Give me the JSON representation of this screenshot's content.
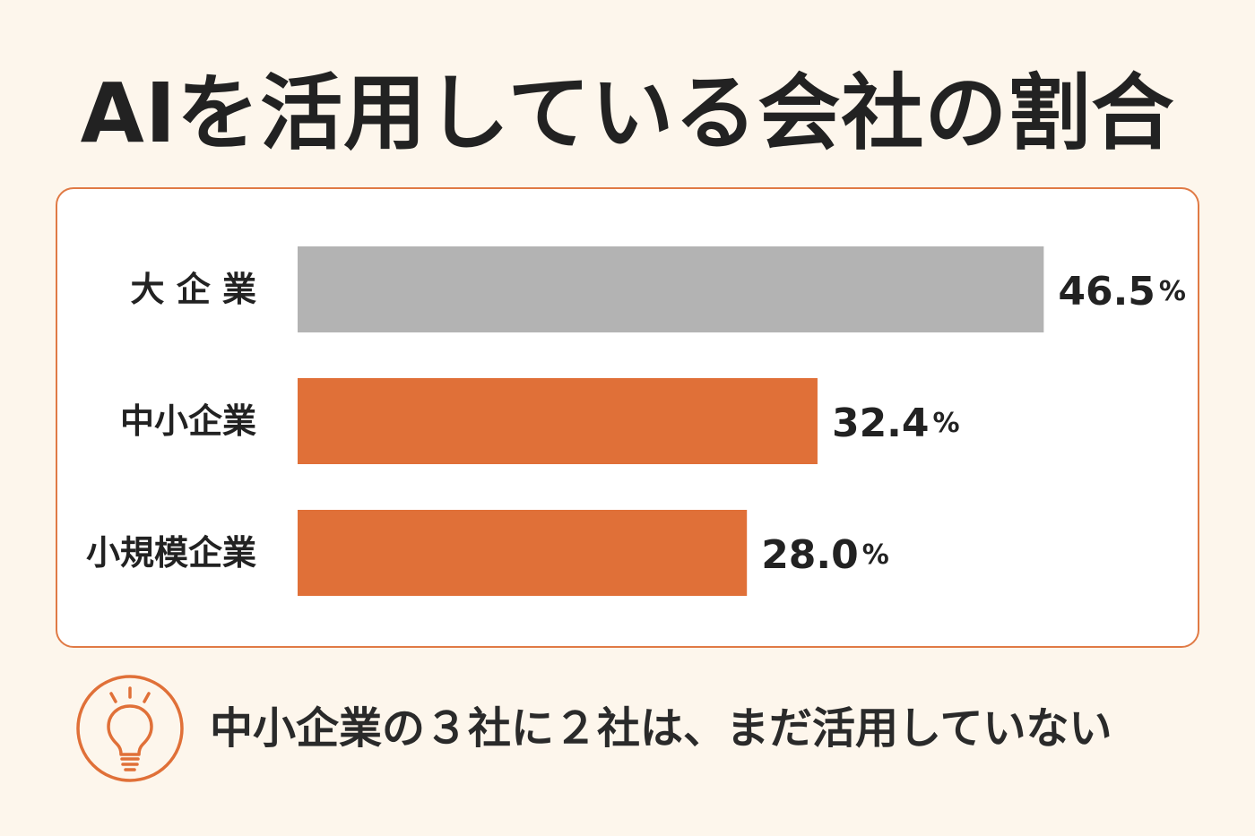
{
  "title": "AIを活用している会社の割合",
  "chart_data": {
    "type": "bar",
    "orientation": "horizontal",
    "title": "AIを活用している会社の割合",
    "categories": [
      "大 企 業",
      "中小企業",
      "小規模企業"
    ],
    "values": [
      46.5,
      32.4,
      28.0
    ],
    "value_labels": [
      "46.5",
      "32.4",
      "28.0"
    ],
    "unit": "%",
    "bar_colors": [
      "#b3b3b3",
      "#e07038",
      "#e07038"
    ],
    "xlabel": "",
    "ylabel": "",
    "grid": false,
    "legend": "none"
  },
  "colors": {
    "background": "#fdf6ec",
    "accent": "#e07038",
    "neutral_bar": "#b3b3b3",
    "card_border": "#e07a45"
  },
  "note": {
    "icon": "lightbulb-icon",
    "text": "中小企業の３社に２社は、まだ活用していない"
  }
}
